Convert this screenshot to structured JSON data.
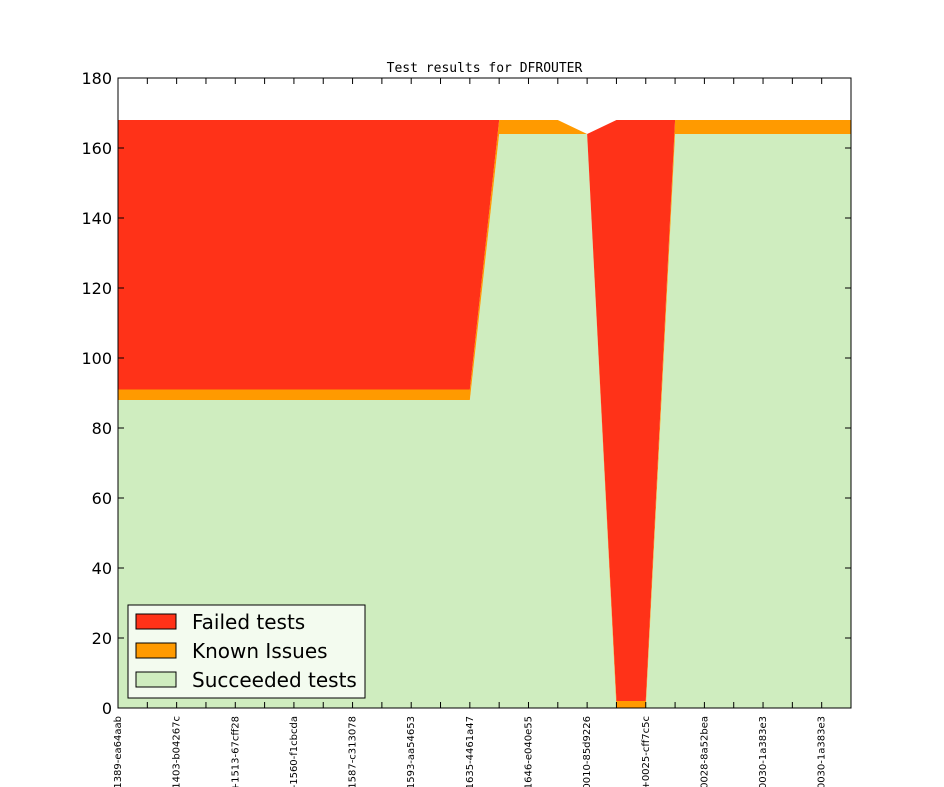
{
  "chart_data": {
    "type": "area",
    "stacked": true,
    "title": "Test results for DFROUTER",
    "xlabel": "",
    "ylabel": "",
    "ylim": [
      0,
      180
    ],
    "yticks": [
      0,
      20,
      40,
      60,
      80,
      100,
      120,
      140,
      160,
      180
    ],
    "x_tick_labels": [
      "1389-ea64aab",
      "1403-b04267c",
      "+1513-67cff28",
      "-1560-f1cbcda",
      "1587-c313078",
      "1593-aa54653",
      "1635-4461a47",
      "1646-e040e55",
      "0010-85d9226",
      "+0025-cff7c5c",
      "0028-8a52bea",
      "0030-1a383e3",
      "0030-1a383e3"
    ],
    "x_index": [
      0,
      0.5,
      1,
      1.5,
      2,
      2.5,
      3,
      3.5,
      4,
      4.5,
      5,
      5.5,
      6,
      6.5,
      7,
      7.5,
      8,
      8.5,
      9,
      9.5,
      10,
      10.5,
      11,
      11.5,
      12,
      12.5
    ],
    "series": [
      {
        "name": "Succeeded tests",
        "color": "#cfedbf",
        "values": [
          88,
          88,
          88,
          88,
          88,
          88,
          88,
          88,
          88,
          88,
          88,
          88,
          88,
          164,
          164,
          164,
          164,
          0,
          0,
          164,
          164,
          164,
          164,
          164,
          164,
          164
        ]
      },
      {
        "name": "Known Issues",
        "color": "#ff9a00",
        "values": [
          3,
          3,
          3,
          3,
          3,
          3,
          3,
          3,
          3,
          3,
          3,
          3,
          3,
          4,
          4,
          4,
          0,
          2,
          2,
          4,
          4,
          4,
          4,
          4,
          4,
          4
        ]
      },
      {
        "name": "Failed tests",
        "color": "#ff3218",
        "values": [
          77,
          77,
          77,
          77,
          77,
          77,
          77,
          77,
          77,
          77,
          77,
          77,
          77,
          0,
          0,
          0,
          0,
          166,
          166,
          0,
          0,
          0,
          0,
          0,
          0,
          0
        ]
      }
    ],
    "legend_order": [
      "Failed tests",
      "Known Issues",
      "Succeeded tests"
    ],
    "legend_position": "lower-left",
    "grid": false
  }
}
